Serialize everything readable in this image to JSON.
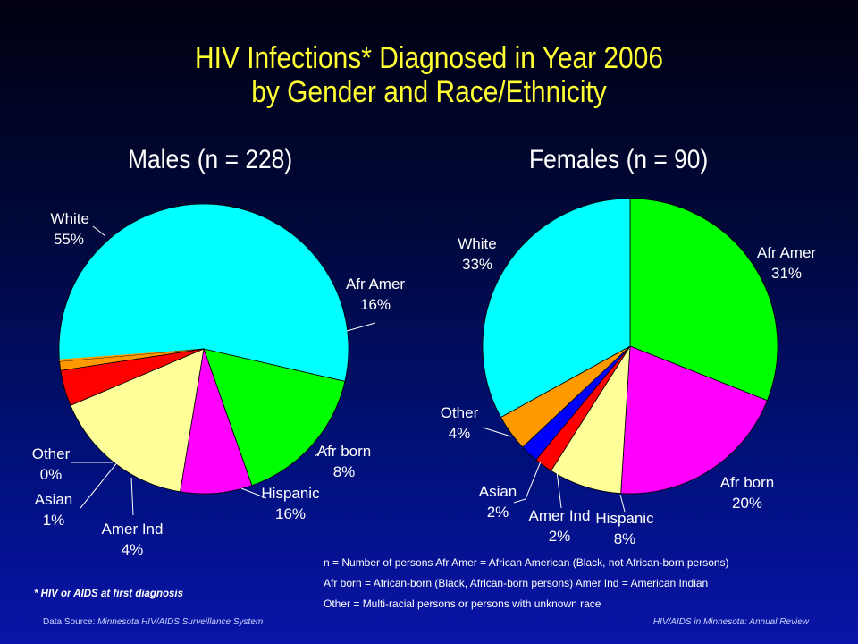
{
  "title": {
    "line1": "HIV Infections* Diagnosed in Year 2006",
    "line2": "by Gender and Race/Ethnicity"
  },
  "chart_data": [
    {
      "type": "pie",
      "title": "Males (n = 228)",
      "categories": [
        "White",
        "Afr Amer",
        "Afr born",
        "Hispanic",
        "Amer Ind",
        "Asian",
        "Other"
      ],
      "values": [
        55,
        16,
        8,
        16,
        4,
        1,
        0
      ],
      "labels": [
        "55%",
        "16%",
        "8%",
        "16%",
        "4%",
        "1%",
        "0%"
      ],
      "colors": [
        "#00ffff",
        "#00ff00",
        "#ff00ff",
        "#ffff99",
        "#ff0000",
        "#ff9900",
        "#ff9900"
      ]
    },
    {
      "type": "pie",
      "title": "Females (n = 90)",
      "categories": [
        "Afr Amer",
        "Afr born",
        "Hispanic",
        "Amer Ind",
        "Asian",
        "Other",
        "White"
      ],
      "values": [
        31,
        20,
        8,
        2,
        2,
        4,
        33
      ],
      "labels": [
        "31%",
        "20%",
        "8%",
        "2%",
        "2%",
        "4%",
        "33%"
      ],
      "colors": [
        "#00ff00",
        "#ff00ff",
        "#ffff99",
        "#ff0000",
        "#0000ff",
        "#ff9900",
        "#00ffff"
      ]
    }
  ],
  "legend": [
    "n = Number of persons        Afr Amer = African American (Black, not African-born persons)",
    "Afr born = African-born (Black, African-born persons)        Amer Ind = American Indian",
    "Other = Multi-racial persons or persons with unknown race"
  ],
  "footnote": "* HIV or AIDS at first diagnosis",
  "source_label": "Data Source:",
  "source_text": "Minnesota HIV/AIDS Surveillance System",
  "report_text": "HIV/AIDS in Minnesota: Annual Review"
}
